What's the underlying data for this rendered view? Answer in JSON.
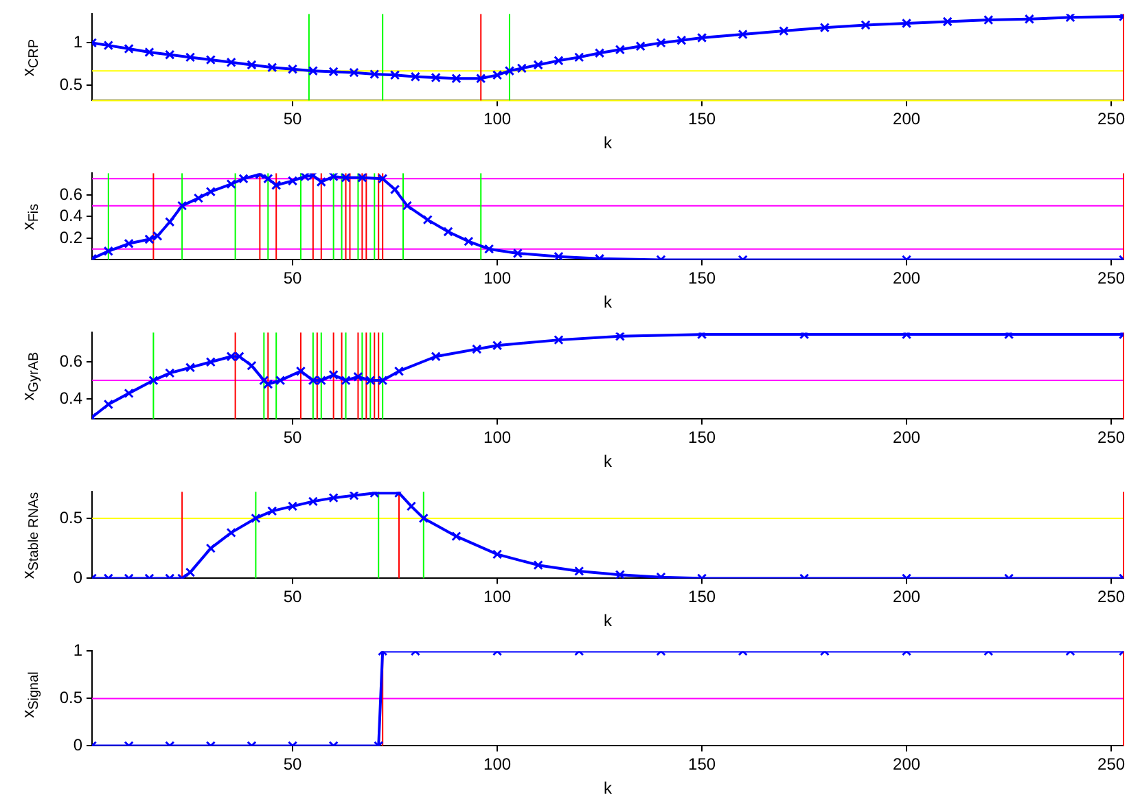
{
  "chart_data": [
    {
      "type": "line",
      "ylabel": "x$_{CRP}$",
      "xlabel": "k",
      "marker": "cross",
      "color": "#0000ff",
      "xlim": [
        1,
        253
      ],
      "xticks": [
        50,
        100,
        150,
        200,
        250
      ],
      "ylim": [
        0.32,
        1.34
      ],
      "yticks": [
        0.5,
        1
      ],
      "x": [
        1,
        5,
        10,
        15,
        20,
        25,
        30,
        35,
        40,
        45,
        50,
        55,
        60,
        65,
        70,
        75,
        80,
        85,
        90,
        96,
        100,
        103,
        106,
        110,
        115,
        120,
        125,
        130,
        135,
        140,
        145,
        150,
        160,
        170,
        180,
        190,
        200,
        210,
        220,
        230,
        240,
        253
      ],
      "values": [
        1.0,
        0.97,
        0.93,
        0.89,
        0.86,
        0.83,
        0.8,
        0.77,
        0.74,
        0.71,
        0.69,
        0.67,
        0.66,
        0.65,
        0.63,
        0.62,
        0.6,
        0.59,
        0.58,
        0.58,
        0.62,
        0.67,
        0.7,
        0.74,
        0.79,
        0.83,
        0.88,
        0.92,
        0.96,
        1.0,
        1.03,
        1.06,
        1.1,
        1.14,
        1.18,
        1.21,
        1.23,
        1.25,
        1.27,
        1.28,
        1.3,
        1.31
      ],
      "ref_lines": [
        {
          "axis": "y",
          "value": 0.67,
          "color": "#ffff00"
        },
        {
          "axis": "y",
          "value": 0.32,
          "color": "#ffff00"
        },
        {
          "axis": "x",
          "value": 54,
          "color": "#00ff00"
        },
        {
          "axis": "x",
          "value": 72,
          "color": "#00ff00"
        },
        {
          "axis": "x",
          "value": 103,
          "color": "#00ff00"
        },
        {
          "axis": "x",
          "value": 96,
          "color": "#ff0000"
        },
        {
          "axis": "x",
          "value": 253,
          "color": "#ff0000"
        }
      ]
    },
    {
      "type": "line",
      "ylabel": "x$_{Fis}$",
      "xlabel": "k",
      "marker": "cross",
      "color": "#0000ff",
      "xlim": [
        1,
        253
      ],
      "xticks": [
        50,
        100,
        150,
        200,
        250
      ],
      "ylim": [
        0,
        0.8
      ],
      "yticks": [
        0.2,
        0.4,
        0.6
      ],
      "x": [
        1,
        5,
        10,
        15,
        17,
        20,
        23,
        27,
        30,
        35,
        38,
        42,
        44,
        46,
        50,
        53,
        55,
        57,
        60,
        63,
        67,
        72,
        75,
        78,
        83,
        88,
        93,
        98,
        105,
        115,
        125,
        140,
        160,
        200,
        253
      ],
      "values": [
        0.01,
        0.08,
        0.15,
        0.19,
        0.22,
        0.35,
        0.5,
        0.57,
        0.63,
        0.7,
        0.75,
        0.79,
        0.75,
        0.69,
        0.73,
        0.77,
        0.78,
        0.72,
        0.77,
        0.76,
        0.76,
        0.75,
        0.65,
        0.5,
        0.37,
        0.26,
        0.17,
        0.1,
        0.06,
        0.03,
        0.01,
        0,
        0,
        0,
        0
      ],
      "ref_lines": [
        {
          "axis": "y",
          "value": 0.75,
          "color": "#ff00ff"
        },
        {
          "axis": "y",
          "value": 0.5,
          "color": "#ff00ff"
        },
        {
          "axis": "y",
          "value": 0.1,
          "color": "#ff00ff"
        },
        {
          "axis": "x",
          "value": 5,
          "color": "#00ff00"
        },
        {
          "axis": "x",
          "value": 23,
          "color": "#00ff00"
        },
        {
          "axis": "x",
          "value": 36,
          "color": "#00ff00"
        },
        {
          "axis": "x",
          "value": 44,
          "color": "#00ff00"
        },
        {
          "axis": "x",
          "value": 52,
          "color": "#00ff00"
        },
        {
          "axis": "x",
          "value": 60,
          "color": "#00ff00"
        },
        {
          "axis": "x",
          "value": 62,
          "color": "#00ff00"
        },
        {
          "axis": "x",
          "value": 66,
          "color": "#00ff00"
        },
        {
          "axis": "x",
          "value": 70,
          "color": "#00ff00"
        },
        {
          "axis": "x",
          "value": 77,
          "color": "#00ff00"
        },
        {
          "axis": "x",
          "value": 96,
          "color": "#00ff00"
        },
        {
          "axis": "x",
          "value": 16,
          "color": "#ff0000"
        },
        {
          "axis": "x",
          "value": 42,
          "color": "#ff0000"
        },
        {
          "axis": "x",
          "value": 46,
          "color": "#ff0000"
        },
        {
          "axis": "x",
          "value": 55,
          "color": "#ff0000"
        },
        {
          "axis": "x",
          "value": 57,
          "color": "#ff0000"
        },
        {
          "axis": "x",
          "value": 63,
          "color": "#ff0000"
        },
        {
          "axis": "x",
          "value": 64,
          "color": "#ff0000"
        },
        {
          "axis": "x",
          "value": 67,
          "color": "#ff0000"
        },
        {
          "axis": "x",
          "value": 68,
          "color": "#ff0000"
        },
        {
          "axis": "x",
          "value": 71,
          "color": "#ff0000"
        },
        {
          "axis": "x",
          "value": 72,
          "color": "#ff0000"
        },
        {
          "axis": "x",
          "value": 253,
          "color": "#ff0000"
        }
      ]
    },
    {
      "type": "line",
      "ylabel": "x$_{GyrAB}$",
      "xlabel": "k",
      "marker": "cross",
      "color": "#0000ff",
      "xlim": [
        1,
        253
      ],
      "xticks": [
        50,
        100,
        150,
        200,
        250
      ],
      "ylim": [
        0.29,
        0.76
      ],
      "yticks": [
        0.4,
        0.6
      ],
      "x": [
        1,
        5,
        10,
        16,
        20,
        25,
        30,
        35,
        37,
        40,
        43,
        44,
        47,
        52,
        55,
        57,
        60,
        63,
        66,
        69,
        72,
        76,
        85,
        95,
        100,
        115,
        130,
        150,
        175,
        200,
        225,
        253
      ],
      "values": [
        0.3,
        0.37,
        0.43,
        0.5,
        0.54,
        0.57,
        0.6,
        0.63,
        0.63,
        0.58,
        0.5,
        0.48,
        0.5,
        0.55,
        0.5,
        0.5,
        0.53,
        0.5,
        0.52,
        0.5,
        0.5,
        0.55,
        0.63,
        0.67,
        0.69,
        0.72,
        0.74,
        0.75,
        0.75,
        0.75,
        0.75,
        0.75
      ],
      "ref_lines": [
        {
          "axis": "y",
          "value": 0.5,
          "color": "#ff00ff"
        },
        {
          "axis": "x",
          "value": 16,
          "color": "#00ff00"
        },
        {
          "axis": "x",
          "value": 43,
          "color": "#00ff00"
        },
        {
          "axis": "x",
          "value": 46,
          "color": "#00ff00"
        },
        {
          "axis": "x",
          "value": 55,
          "color": "#00ff00"
        },
        {
          "axis": "x",
          "value": 57,
          "color": "#00ff00"
        },
        {
          "axis": "x",
          "value": 63,
          "color": "#00ff00"
        },
        {
          "axis": "x",
          "value": 67,
          "color": "#00ff00"
        },
        {
          "axis": "x",
          "value": 69,
          "color": "#00ff00"
        },
        {
          "axis": "x",
          "value": 72,
          "color": "#00ff00"
        },
        {
          "axis": "x",
          "value": 36,
          "color": "#ff0000"
        },
        {
          "axis": "x",
          "value": 44,
          "color": "#ff0000"
        },
        {
          "axis": "x",
          "value": 52,
          "color": "#ff0000"
        },
        {
          "axis": "x",
          "value": 56,
          "color": "#ff0000"
        },
        {
          "axis": "x",
          "value": 60,
          "color": "#ff0000"
        },
        {
          "axis": "x",
          "value": 62,
          "color": "#ff0000"
        },
        {
          "axis": "x",
          "value": 66,
          "color": "#ff0000"
        },
        {
          "axis": "x",
          "value": 68,
          "color": "#ff0000"
        },
        {
          "axis": "x",
          "value": 70,
          "color": "#ff0000"
        },
        {
          "axis": "x",
          "value": 71,
          "color": "#ff0000"
        },
        {
          "axis": "x",
          "value": 253,
          "color": "#ff0000"
        }
      ]
    },
    {
      "type": "line",
      "ylabel": "x$_{Stable RNAs}$",
      "xlabel": "k",
      "marker": "cross",
      "color": "#0000ff",
      "xlim": [
        1,
        253
      ],
      "xticks": [
        50,
        100,
        150,
        200,
        250
      ],
      "ylim": [
        0,
        0.72
      ],
      "yticks": [
        0,
        0.5
      ],
      "x": [
        1,
        5,
        10,
        15,
        20,
        23,
        25,
        30,
        35,
        41,
        45,
        50,
        55,
        60,
        65,
        70,
        76,
        79,
        82,
        90,
        100,
        110,
        120,
        130,
        140,
        150,
        175,
        200,
        225,
        253
      ],
      "values": [
        0,
        0,
        0,
        0,
        0,
        0,
        0.05,
        0.25,
        0.38,
        0.5,
        0.56,
        0.6,
        0.64,
        0.67,
        0.69,
        0.71,
        0.71,
        0.6,
        0.5,
        0.35,
        0.2,
        0.11,
        0.06,
        0.03,
        0.01,
        0,
        0,
        0,
        0,
        0
      ],
      "ref_lines": [
        {
          "axis": "y",
          "value": 0.5,
          "color": "#ffff00"
        },
        {
          "axis": "x",
          "value": 41,
          "color": "#00ff00"
        },
        {
          "axis": "x",
          "value": 71,
          "color": "#00ff00"
        },
        {
          "axis": "x",
          "value": 82,
          "color": "#00ff00"
        },
        {
          "axis": "x",
          "value": 23,
          "color": "#ff0000"
        },
        {
          "axis": "x",
          "value": 76,
          "color": "#ff0000"
        },
        {
          "axis": "x",
          "value": 253,
          "color": "#ff0000"
        }
      ]
    },
    {
      "type": "line",
      "ylabel": "x$_{Signal}$",
      "xlabel": "k",
      "marker": "cross",
      "color": "#0000ff",
      "xlim": [
        1,
        253
      ],
      "xticks": [
        50,
        100,
        150,
        200,
        250
      ],
      "ylim": [
        0,
        1
      ],
      "yticks": [
        0,
        0.5,
        1
      ],
      "x": [
        1,
        10,
        20,
        30,
        40,
        50,
        60,
        71,
        72,
        80,
        100,
        120,
        140,
        160,
        180,
        200,
        220,
        240,
        253
      ],
      "values": [
        0,
        0,
        0,
        0,
        0,
        0,
        0,
        0,
        1,
        1,
        1,
        1,
        1,
        1,
        1,
        1,
        1,
        1,
        1
      ],
      "ref_lines": [
        {
          "axis": "y",
          "value": 0.5,
          "color": "#ff00ff"
        },
        {
          "axis": "x",
          "value": 72,
          "color": "#ff0000"
        },
        {
          "axis": "x",
          "value": 253,
          "color": "#ff0000"
        }
      ]
    }
  ]
}
